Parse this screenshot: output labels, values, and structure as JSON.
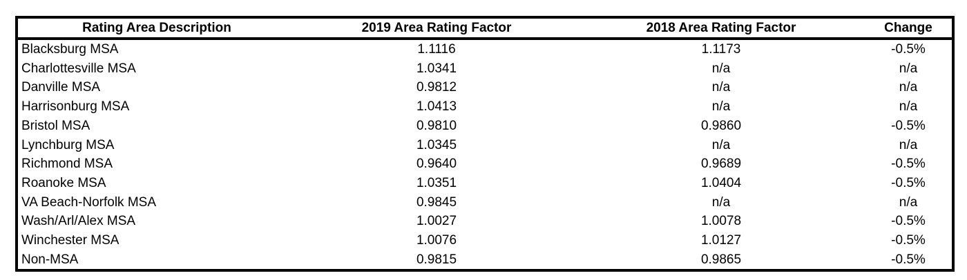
{
  "colors": {
    "border": "#000000",
    "text": "#000000",
    "background": "#ffffff"
  },
  "table": {
    "columns": [
      "Rating Area Description",
      "2019 Area Rating Factor",
      "2018 Area Rating Factor",
      "Change"
    ],
    "rows": [
      {
        "area": "Blacksburg MSA",
        "factor_2019": "1.1116",
        "factor_2018": "1.1173",
        "change": "-0.5%"
      },
      {
        "area": "Charlottesville MSA",
        "factor_2019": "1.0341",
        "factor_2018": "n/a",
        "change": "n/a"
      },
      {
        "area": "Danville MSA",
        "factor_2019": "0.9812",
        "factor_2018": "n/a",
        "change": "n/a"
      },
      {
        "area": "Harrisonburg MSA",
        "factor_2019": "1.0413",
        "factor_2018": "n/a",
        "change": "n/a"
      },
      {
        "area": "Bristol MSA",
        "factor_2019": "0.9810",
        "factor_2018": "0.9860",
        "change": "-0.5%"
      },
      {
        "area": "Lynchburg MSA",
        "factor_2019": "1.0345",
        "factor_2018": "n/a",
        "change": "n/a"
      },
      {
        "area": "Richmond MSA",
        "factor_2019": "0.9640",
        "factor_2018": "0.9689",
        "change": "-0.5%"
      },
      {
        "area": "Roanoke MSA",
        "factor_2019": "1.0351",
        "factor_2018": "1.0404",
        "change": "-0.5%"
      },
      {
        "area": "VA Beach-Norfolk MSA",
        "factor_2019": "0.9845",
        "factor_2018": "n/a",
        "change": "n/a"
      },
      {
        "area": "Wash/Arl/Alex MSA",
        "factor_2019": "1.0027",
        "factor_2018": "1.0078",
        "change": "-0.5%"
      },
      {
        "area": "Winchester MSA",
        "factor_2019": "1.0076",
        "factor_2018": "1.0127",
        "change": "-0.5%"
      },
      {
        "area": "Non-MSA",
        "factor_2019": "0.9815",
        "factor_2018": "0.9865",
        "change": "-0.5%"
      }
    ]
  }
}
